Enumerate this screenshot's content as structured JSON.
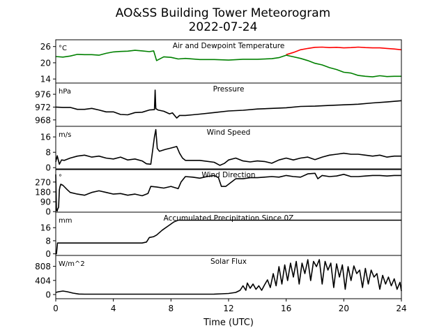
{
  "chart_data": {
    "type": "line",
    "title": "AO&SS Building Tower Meteorogram",
    "subtitle": "2022-07-24",
    "xlabel": "Time (UTC)",
    "xlim": [
      0,
      24
    ],
    "xticks": [
      0,
      4,
      8,
      12,
      16,
      20,
      24
    ],
    "panels": [
      {
        "title": "Air and Dewpoint Temperature",
        "unit": "°C",
        "ylim": [
          12.5,
          28.5
        ],
        "yticks": [
          14,
          20,
          26
        ],
        "series": [
          {
            "color": "#ff0000",
            "x": [
              16.0,
              16.5,
              17.0,
              17.5,
              18.0,
              18.5,
              19.0,
              19.5,
              20.0,
              20.5,
              21.0,
              21.5,
              22.0,
              22.5,
              23.0,
              23.5,
              24.0
            ],
            "y": [
              23.0,
              23.8,
              24.8,
              25.3,
              25.7,
              25.8,
              25.6,
              25.7,
              25.5,
              25.6,
              25.8,
              25.6,
              25.5,
              25.5,
              25.3,
              25.1,
              24.8
            ]
          },
          {
            "color": "#008000",
            "x": [
              0,
              0.5,
              1.0,
              1.5,
              2.0,
              2.5,
              3.0,
              3.5,
              4.0,
              4.5,
              5.0,
              5.5,
              6.0,
              6.5,
              6.8,
              7.0,
              7.5,
              8.0,
              8.5,
              9.0,
              10.0,
              11.0,
              12.0,
              13.0,
              14.0,
              15.0,
              15.5,
              16.0,
              16.5,
              17.0,
              17.5,
              18.0,
              18.5,
              19.0,
              19.5,
              20.0,
              20.5,
              21.0,
              21.5,
              22.0,
              22.5,
              23.0,
              23.5,
              24.0
            ],
            "y": [
              22.3,
              22.1,
              22.5,
              23.1,
              23.0,
              23.0,
              22.8,
              23.5,
              24.0,
              24.2,
              24.3,
              24.6,
              24.4,
              24.1,
              24.4,
              20.8,
              22.2,
              22.0,
              21.4,
              21.6,
              21.2,
              21.2,
              21.0,
              21.3,
              21.3,
              21.5,
              21.9,
              22.8,
              22.2,
              21.6,
              20.8,
              19.8,
              19.2,
              18.2,
              17.5,
              16.5,
              16.2,
              15.3,
              15.0,
              14.8,
              15.2,
              14.9,
              15.0,
              15.0
            ]
          }
        ]
      },
      {
        "title": "Pressure",
        "unit": "hPa",
        "ylim": [
          966.0,
          979.5
        ],
        "yticks": [
          968,
          972,
          976
        ],
        "series": [
          {
            "color": "#000000",
            "x": [
              0,
              0.5,
              1.0,
              1.5,
              2.0,
              2.5,
              3.0,
              3.5,
              4.0,
              4.5,
              5.0,
              5.5,
              6.0,
              6.5,
              6.85,
              6.9,
              6.95,
              7.1,
              7.5,
              7.9,
              8.1,
              8.4,
              8.6,
              9.0,
              9.5,
              10.0,
              11.0,
              12.0,
              13.0,
              14.0,
              15.0,
              16.0,
              17.0,
              18.0,
              19.0,
              20.0,
              21.0,
              22.0,
              23.0,
              24.0
            ],
            "y": [
              972.0,
              971.9,
              971.9,
              971.3,
              971.3,
              971.6,
              971.1,
              970.5,
              970.5,
              969.7,
              969.6,
              970.3,
              970.4,
              971.1,
              971.2,
              977.3,
              971.5,
              971.1,
              970.7,
              969.9,
              970.2,
              968.6,
              969.4,
              969.4,
              969.6,
              969.8,
              970.3,
              970.8,
              971.0,
              971.4,
              971.6,
              971.8,
              972.2,
              972.3,
              972.5,
              972.7,
              972.9,
              973.3,
              973.6,
              974.0
            ]
          }
        ]
      },
      {
        "title": "Wind Speed",
        "unit": "m/s",
        "ylim": [
          -1,
          21.5
        ],
        "yticks": [
          0,
          8,
          16
        ],
        "series": [
          {
            "color": "#000000",
            "x": [
              0,
              0.1,
              0.25,
              0.4,
              0.6,
              1.0,
              1.5,
              2.0,
              2.5,
              3.0,
              3.5,
              4.0,
              4.5,
              5.0,
              5.5,
              6.0,
              6.3,
              6.6,
              6.85,
              6.95,
              7.05,
              7.2,
              7.6,
              8.0,
              8.4,
              8.6,
              8.8,
              9.0,
              10.0,
              11.0,
              11.4,
              11.7,
              12.0,
              12.5,
              13.0,
              13.5,
              14.0,
              14.5,
              15.0,
              15.5,
              16.0,
              16.5,
              17.0,
              17.5,
              18.0,
              18.5,
              19.0,
              19.5,
              20.0,
              20.5,
              21.0,
              21.5,
              22.0,
              22.5,
              23.0,
              23.5,
              24.0
            ],
            "y": [
              3.0,
              6.2,
              1.8,
              4.0,
              3.8,
              5.0,
              6.0,
              6.5,
              5.5,
              6.0,
              5.0,
              4.5,
              5.5,
              4.0,
              4.5,
              3.5,
              2.0,
              1.8,
              16.0,
              19.8,
              10.0,
              8.5,
              9.5,
              10.2,
              11.0,
              7.5,
              5.0,
              3.8,
              3.8,
              2.8,
              1.2,
              2.2,
              4.0,
              5.0,
              3.5,
              3.0,
              3.5,
              3.2,
              2.3,
              4.0,
              5.0,
              4.0,
              5.0,
              5.5,
              4.2,
              5.5,
              6.5,
              7.0,
              7.5,
              7.0,
              7.0,
              6.5,
              6.0,
              6.5,
              5.5,
              6.0,
              6.0
            ]
          }
        ]
      },
      {
        "title": "Wind Direction",
        "unit": "°",
        "ylim": [
          -5,
          390
        ],
        "yticks": [
          0,
          90,
          180,
          270
        ],
        "series": [
          {
            "color": "#000000",
            "x": [
              0,
              0.05,
              0.1,
              0.12,
              0.2,
              0.25,
              0.3,
              0.35,
              0.5,
              0.8,
              1.0,
              1.5,
              2.0,
              2.5,
              3.0,
              3.5,
              4.0,
              4.5,
              5.0,
              5.5,
              6.0,
              6.4,
              6.6,
              7.0,
              7.5,
              8.0,
              8.5,
              8.7,
              9.0,
              9.5,
              10.0,
              10.5,
              11.0,
              11.3,
              11.5,
              11.8,
              12.0,
              12.5,
              13.0,
              13.5,
              14.0,
              14.5,
              15.0,
              15.5,
              16.0,
              16.5,
              17.0,
              17.5,
              18.0,
              18.2,
              18.5,
              19.0,
              19.5,
              20.0,
              20.5,
              21.0,
              21.5,
              22.0,
              22.5,
              23.0,
              23.5,
              24.0
            ],
            "y": [
              340,
              10,
              5,
              20,
              40,
              200,
              230,
              250,
              240,
              200,
              175,
              160,
              150,
              175,
              190,
              175,
              160,
              165,
              150,
              160,
              145,
              165,
              230,
              225,
              215,
              230,
              210,
              270,
              320,
              315,
              305,
              320,
              330,
              310,
              230,
              230,
              250,
              300,
              300,
              310,
              310,
              315,
              320,
              315,
              330,
              320,
              315,
              345,
              350,
              300,
              330,
              320,
              325,
              340,
              320,
              320,
              325,
              330,
              330,
              325,
              330,
              330
            ]
          }
        ]
      },
      {
        "title": "Accumulated Precipitation Since 0Z",
        "unit": "mm",
        "ylim": [
          -1,
          25.5
        ],
        "yticks": [
          0,
          8,
          16
        ],
        "series": [
          {
            "color": "#000000",
            "x": [
              0,
              0.05,
              0.12,
              1.0,
              2.0,
              3.0,
              4.0,
              5.0,
              6.0,
              6.3,
              6.5,
              6.8,
              7.0,
              7.4,
              7.8,
              8.2,
              8.5,
              9.0,
              10.0,
              12.0,
              14.0,
              16.0,
              18.0,
              20.0,
              22.0,
              24.0
            ],
            "y": [
              0,
              0,
              6.6,
              6.6,
              6.6,
              6.6,
              6.6,
              6.6,
              6.6,
              7.2,
              10.0,
              10.5,
              11.5,
              14.5,
              17.0,
              19.5,
              20.6,
              20.6,
              20.6,
              20.6,
              20.6,
              20.6,
              20.6,
              20.6,
              20.6,
              20.6
            ]
          }
        ]
      },
      {
        "title": "Solar Flux",
        "unit": "W/m^2",
        "ylim": [
          -120,
          1120
        ],
        "yticks": [
          0,
          404,
          808
        ],
        "series": [
          {
            "color": "#000000",
            "x": [
              0,
              0.2,
              0.5,
              0.8,
              1.2,
              1.6,
              2.0,
              3.0,
              4.0,
              5.0,
              6.0,
              7.0,
              8.0,
              9.0,
              10.0,
              11.0,
              11.5,
              12.0,
              12.5,
              12.8,
              13.0,
              13.2,
              13.3,
              13.5,
              13.7,
              13.9,
              14.1,
              14.3,
              14.5,
              14.7,
              14.9,
              15.1,
              15.3,
              15.5,
              15.7,
              15.9,
              16.1,
              16.3,
              16.5,
              16.7,
              16.9,
              17.1,
              17.3,
              17.5,
              17.7,
              17.9,
              18.1,
              18.3,
              18.5,
              18.7,
              18.9,
              19.1,
              19.3,
              19.5,
              19.7,
              19.9,
              20.1,
              20.3,
              20.5,
              20.7,
              20.9,
              21.1,
              21.3,
              21.5,
              21.7,
              21.9,
              22.1,
              22.3,
              22.5,
              22.7,
              22.9,
              23.1,
              23.3,
              23.5,
              23.7,
              23.9,
              24.0
            ],
            "y": [
              60,
              80,
              100,
              80,
              40,
              15,
              10,
              10,
              10,
              10,
              10,
              10,
              10,
              10,
              10,
              12,
              20,
              30,
              60,
              120,
              250,
              120,
              330,
              180,
              300,
              150,
              250,
              120,
              280,
              420,
              200,
              600,
              250,
              800,
              300,
              850,
              400,
              900,
              500,
              950,
              300,
              900,
              600,
              1000,
              400,
              950,
              800,
              1000,
              300,
              950,
              700,
              900,
              200,
              880,
              500,
              850,
              150,
              800,
              400,
              820,
              600,
              700,
              200,
              750,
              300,
              700,
              500,
              600,
              150,
              550,
              300,
              500,
              250,
              450,
              150,
              350,
              100
            ]
          }
        ]
      }
    ]
  }
}
